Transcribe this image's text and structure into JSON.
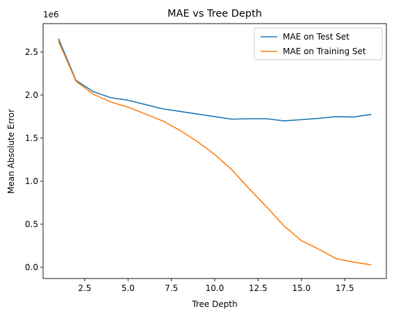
{
  "chart_data": {
    "type": "line",
    "title": "MAE vs Tree Depth",
    "xlabel": "Tree Depth",
    "ylabel": "Mean Absolute Error",
    "y_scale_label": "1e6",
    "xlim": [
      0.1,
      19.9
    ],
    "ylim": [
      -0.13,
      2.83
    ],
    "x_ticks": [
      2.5,
      5.0,
      7.5,
      10.0,
      12.5,
      15.0,
      17.5
    ],
    "x_tick_labels": [
      "2.5",
      "5.0",
      "7.5",
      "10.0",
      "12.5",
      "15.0",
      "17.5"
    ],
    "y_ticks": [
      0.0,
      0.5,
      1.0,
      1.5,
      2.0,
      2.5
    ],
    "y_tick_labels": [
      "0.0",
      "0.5",
      "1.0",
      "1.5",
      "2.0",
      "2.5"
    ],
    "grid": false,
    "legend_position": "top-right",
    "x": [
      1,
      2,
      3,
      4,
      5,
      6,
      7,
      8,
      9,
      10,
      11,
      12,
      13,
      14,
      15,
      16,
      17,
      18,
      19
    ],
    "series": [
      {
        "name": "MAE on Test Set",
        "color": "#1f77b4",
        "values": [
          2.65,
          2.17,
          2.04,
          1.97,
          1.94,
          1.89,
          1.84,
          1.81,
          1.78,
          1.75,
          1.72,
          1.725,
          1.725,
          1.7,
          1.715,
          1.73,
          1.75,
          1.745,
          1.775
        ]
      },
      {
        "name": "MAE on Training Set",
        "color": "#ff7f0e",
        "values": [
          2.62,
          2.16,
          2.01,
          1.92,
          1.86,
          1.78,
          1.7,
          1.59,
          1.46,
          1.31,
          1.13,
          0.91,
          0.7,
          0.48,
          0.31,
          0.21,
          0.1,
          0.06,
          0.03
        ]
      }
    ]
  }
}
